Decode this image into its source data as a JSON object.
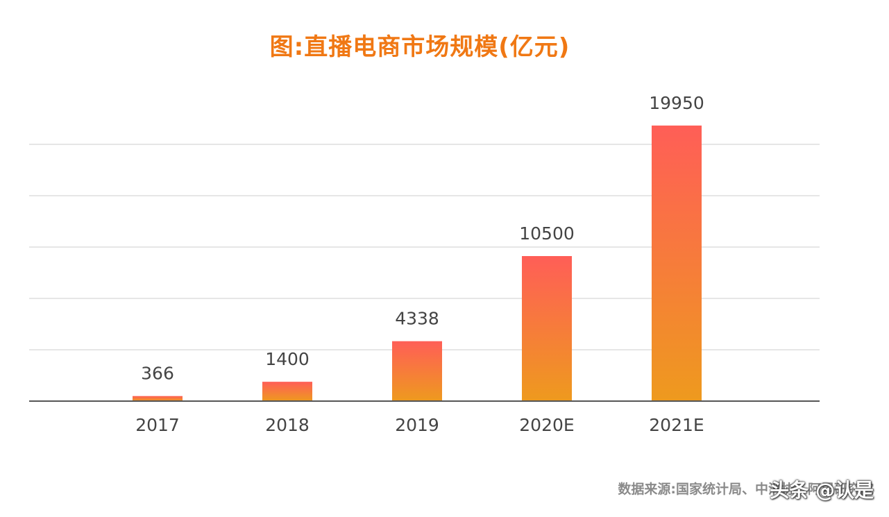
{
  "chart_data": {
    "type": "bar",
    "title": "图:直播电商市场规模(亿元)",
    "categories": [
      "2017",
      "2018",
      "2019",
      "2020E",
      "2021E"
    ],
    "values": [
      366,
      1400,
      4338,
      10500,
      19950
    ],
    "data_labels": [
      "366",
      "1400",
      "4338",
      "10500",
      "19950"
    ],
    "xlabel": "",
    "ylabel": "",
    "ylim": [
      0,
      21000
    ],
    "grid": true,
    "legend": "none",
    "colors": {
      "bar_top": "#ff5e57",
      "bar_bottom": "#ee9a1e",
      "title": "#f07814",
      "grid": "#e6e6e6",
      "axis": "#555555",
      "label": "#444444"
    }
  },
  "source_text": "数据来源:国家统计局、中消协、阿里研究院",
  "watermark_text": "头条 @认是"
}
